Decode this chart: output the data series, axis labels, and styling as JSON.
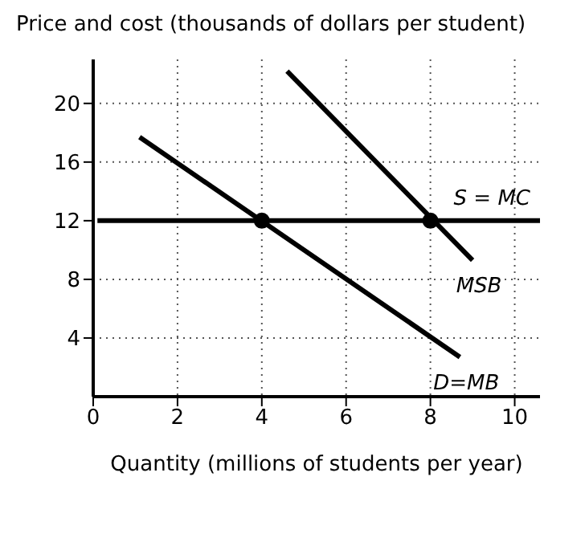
{
  "chart_data": {
    "type": "line",
    "ylabel": "Price and cost (thousands of dollars per student)",
    "xlabel": "Quantity (millions of students per year)",
    "xlim": [
      0,
      10.6
    ],
    "ylim": [
      0,
      23
    ],
    "xticks": [
      0,
      2,
      4,
      6,
      8,
      10
    ],
    "yticks": [
      4,
      8,
      12,
      16,
      20
    ],
    "grid": true,
    "marker": "none",
    "line_style": "solid",
    "series": [
      {
        "name": "S = MC",
        "color": "#000000",
        "x": [
          0.1,
          10.6
        ],
        "values": [
          12,
          12
        ]
      },
      {
        "name": "MSB",
        "color": "#000000",
        "x": [
          4.6,
          9.0
        ],
        "values": [
          22.2,
          9.3
        ]
      },
      {
        "name": "D=MB",
        "color": "#000000",
        "x": [
          1.1,
          8.7
        ],
        "values": [
          17.7,
          2.7
        ]
      },
      {
        "type": "scatter",
        "color": "#000000",
        "marker": "circle",
        "x": [
          4,
          8
        ],
        "values": [
          12,
          12
        ]
      }
    ]
  }
}
